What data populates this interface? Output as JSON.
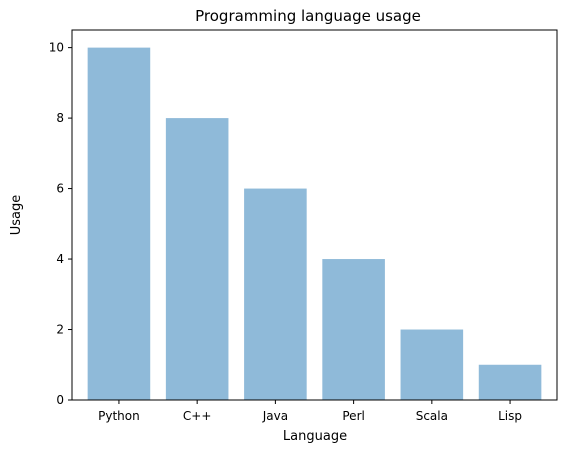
{
  "chart_data": {
    "type": "bar",
    "title": "Programming language usage",
    "xlabel": "Language",
    "ylabel": "Usage",
    "categories": [
      "Python",
      "C++",
      "Java",
      "Perl",
      "Scala",
      "Lisp"
    ],
    "values": [
      10,
      8,
      6,
      4,
      2,
      1
    ],
    "ylim": [
      0,
      10.5
    ],
    "yticks": [
      0,
      2,
      4,
      6,
      8,
      10
    ],
    "grid": false,
    "bar_color": "#8fbad9"
  }
}
